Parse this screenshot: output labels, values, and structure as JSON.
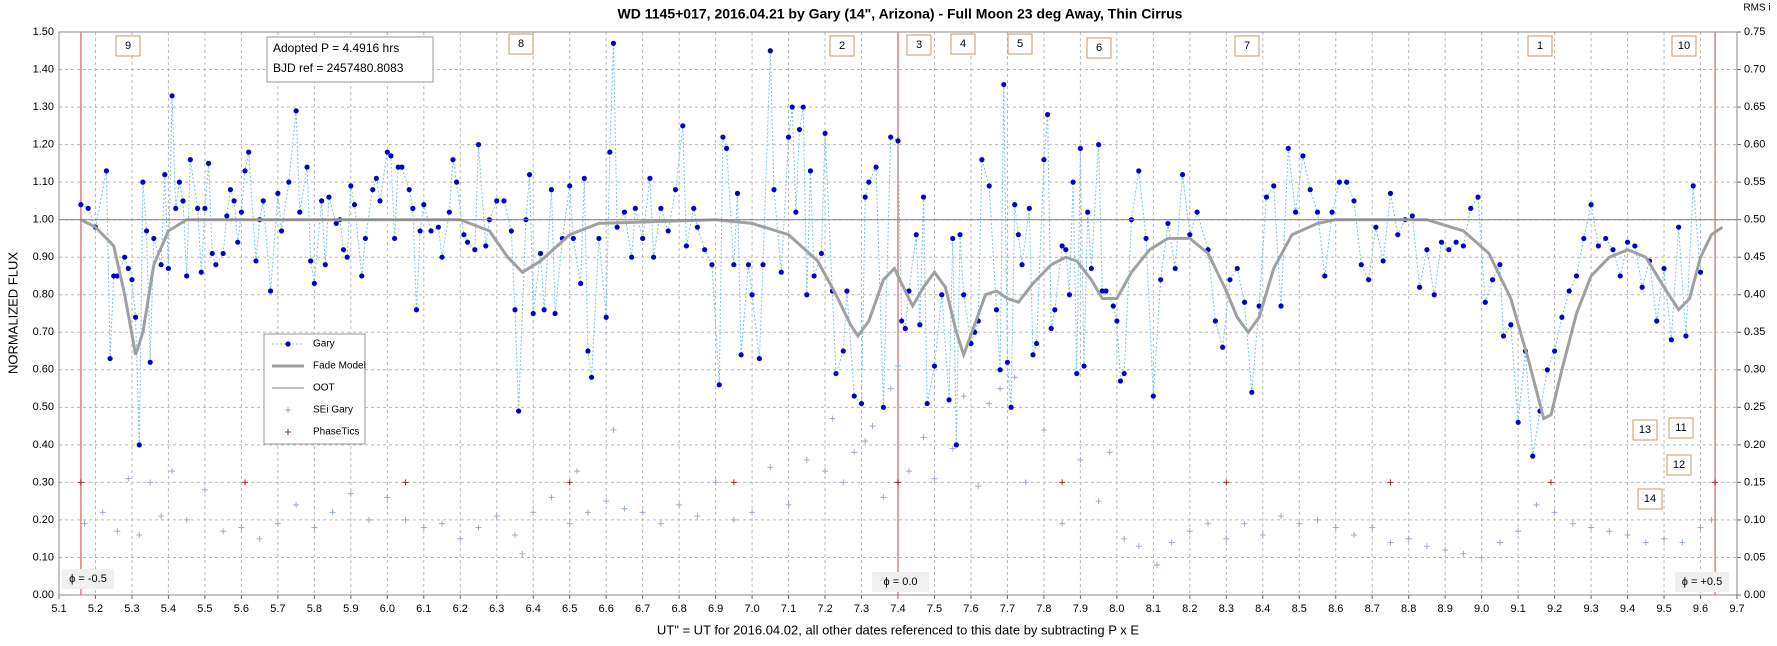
{
  "chart_data": {
    "type": "scatter",
    "title": "WD 1145+017, 2016.04.21 by Gary (14\", Arizona) - Full Moon 23 deg Away, Thin Cirrus",
    "xlabel": "UT\" = UT for 2016.04.02, all other dates referenced to this date by subtracting P x E",
    "ylabel": "NORMALIZED FLUX",
    "y2label": "RMS i",
    "xlim": [
      5.1,
      9.7
    ],
    "xticks": [
      5.1,
      5.2,
      5.3,
      5.4,
      5.5,
      5.6,
      5.7,
      5.8,
      5.9,
      {
        "value": 6,
        "label": "6.0"
      },
      6.1,
      6.2,
      6.3,
      6.4,
      6.5,
      6.6,
      6.7,
      6.8,
      6.9,
      {
        "value": 7,
        "label": "7.0"
      },
      7.1,
      7.2,
      7.3,
      7.4,
      7.5,
      7.6,
      7.7,
      7.8,
      7.9,
      {
        "value": 8,
        "label": "8.0"
      },
      8.1,
      8.2,
      8.3,
      8.4,
      8.5,
      8.6,
      8.7,
      8.8,
      8.9,
      {
        "value": 9,
        "label": "9.0"
      },
      9.1,
      9.2,
      9.3,
      9.4,
      9.5,
      9.6,
      9.7
    ],
    "ylim": [
      0,
      1.5
    ],
    "yticks": [
      {
        "value": 0,
        "label": "0.00"
      },
      {
        "value": 0.1,
        "label": "0.10"
      },
      {
        "value": 0.2,
        "label": "0.20"
      },
      {
        "value": 0.3,
        "label": "0.30"
      },
      {
        "value": 0.4,
        "label": "0.40"
      },
      {
        "value": 0.5,
        "label": "0.50"
      },
      {
        "value": 0.6,
        "label": "0.60"
      },
      {
        "value": 0.7,
        "label": "0.70"
      },
      {
        "value": 0.8,
        "label": "0.80"
      },
      {
        "value": 0.9,
        "label": "0.90"
      },
      {
        "value": 1,
        "label": "1.00"
      },
      {
        "value": 1.1,
        "label": "1.10"
      },
      {
        "value": 1.2,
        "label": "1.20"
      },
      {
        "value": 1.3,
        "label": "1.30"
      },
      {
        "value": 1.4,
        "label": "1.40"
      },
      {
        "value": 1.5,
        "label": "1.50"
      }
    ],
    "y2lim": [
      0,
      0.75
    ],
    "y2ticks": [
      {
        "value": 0,
        "label": "0.00"
      },
      {
        "value": 0.05,
        "label": "0.05"
      },
      {
        "value": 0.1,
        "label": "0.10"
      },
      {
        "value": 0.15,
        "label": "0.15"
      },
      {
        "value": 0.2,
        "label": "0.20"
      },
      {
        "value": 0.25,
        "label": "0.25"
      },
      {
        "value": 0.3,
        "label": "0.30"
      },
      {
        "value": 0.35,
        "label": "0.35"
      },
      {
        "value": 0.4,
        "label": "0.40"
      },
      {
        "value": 0.45,
        "label": "0.45"
      },
      {
        "value": 0.5,
        "label": "0.50"
      },
      {
        "value": 0.55,
        "label": "0.55"
      },
      {
        "value": 0.6,
        "label": "0.60"
      },
      {
        "value": 0.65,
        "label": "0.65"
      },
      {
        "value": 0.7,
        "label": "0.70"
      },
      {
        "value": 0.75,
        "label": "0.75"
      }
    ],
    "grid": true,
    "legend": "center-left",
    "series": [
      {
        "name": "Gary",
        "color": "#0000cc",
        "line_color": "#7cc4e0",
        "marker": "circle",
        "line": "dotted",
        "x": [
          5.16,
          5.18,
          5.2,
          5.23,
          5.24,
          5.25,
          5.26,
          5.28,
          5.29,
          5.3,
          5.31,
          5.32,
          5.33,
          5.34,
          5.35,
          5.36,
          5.38,
          5.39,
          5.4,
          5.41,
          5.42,
          5.43,
          5.44,
          5.45,
          5.46,
          5.48,
          5.49,
          5.5,
          5.51,
          5.52,
          5.53,
          5.55,
          5.56,
          5.57,
          5.58,
          5.59,
          5.6,
          5.61,
          5.62,
          5.64,
          5.65,
          5.66,
          5.68,
          5.7,
          5.71,
          5.73,
          5.75,
          5.76,
          5.78,
          5.79,
          5.8,
          5.82,
          5.83,
          5.84,
          5.86,
          5.87,
          5.88,
          5.89,
          5.9,
          5.91,
          5.93,
          5.94,
          5.96,
          5.97,
          5.98,
          6.0,
          6.01,
          6.02,
          6.03,
          6.04,
          6.06,
          6.07,
          6.08,
          6.09,
          6.1,
          6.12,
          6.14,
          6.15,
          6.17,
          6.18,
          6.19,
          6.21,
          6.22,
          6.24,
          6.25,
          6.27,
          6.28,
          6.3,
          6.32,
          6.34,
          6.35,
          6.36,
          6.38,
          6.39,
          6.4,
          6.42,
          6.43,
          6.45,
          6.46,
          6.48,
          6.5,
          6.51,
          6.53,
          6.54,
          6.55,
          6.56,
          6.58,
          6.6,
          6.61,
          6.62,
          6.63,
          6.65,
          6.67,
          6.68,
          6.7,
          6.72,
          6.73,
          6.75,
          6.77,
          6.79,
          6.81,
          6.82,
          6.84,
          6.85,
          6.87,
          6.89,
          6.91,
          6.92,
          6.93,
          6.95,
          6.96,
          6.97,
          6.99,
          7.0,
          7.02,
          7.03,
          7.05,
          7.06,
          7.08,
          7.1,
          7.11,
          7.12,
          7.13,
          7.14,
          7.15,
          7.16,
          7.17,
          7.19,
          7.2,
          7.22,
          7.23,
          7.25,
          7.26,
          7.28,
          7.3,
          7.31,
          7.32,
          7.34,
          7.36,
          7.38,
          7.4,
          7.41,
          7.42,
          7.43,
          7.45,
          7.46,
          7.47,
          7.48,
          7.5,
          7.52,
          7.54,
          7.55,
          7.56,
          7.57,
          7.58,
          7.6,
          7.61,
          7.62,
          7.63,
          7.65,
          7.67,
          7.68,
          7.69,
          7.7,
          7.71,
          7.72,
          7.73,
          7.74,
          7.76,
          7.77,
          7.78,
          7.8,
          7.81,
          7.82,
          7.83,
          7.85,
          7.86,
          7.87,
          7.88,
          7.89,
          7.9,
          7.91,
          7.92,
          7.93,
          7.95,
          7.96,
          7.97,
          7.99,
          8.0,
          8.01,
          8.02,
          8.04,
          8.06,
          8.08,
          8.1,
          8.12,
          8.14,
          8.16,
          8.18,
          8.2,
          8.22,
          8.25,
          8.27,
          8.29,
          8.31,
          8.33,
          8.35,
          8.37,
          8.39,
          8.41,
          8.43,
          8.45,
          8.47,
          8.49,
          8.51,
          8.53,
          8.55,
          8.57,
          8.59,
          8.61,
          8.63,
          8.65,
          8.67,
          8.69,
          8.71,
          8.73,
          8.75,
          8.77,
          8.79,
          8.81,
          8.83,
          8.85,
          8.87,
          8.89,
          8.91,
          8.93,
          8.95,
          8.97,
          8.99,
          9.01,
          9.03,
          9.05,
          9.06,
          9.08,
          9.1,
          9.12,
          9.14,
          9.16,
          9.18,
          9.2,
          9.22,
          9.24,
          9.26,
          9.28,
          9.3,
          9.32,
          9.34,
          9.36,
          9.38,
          9.4,
          9.42,
          9.44,
          9.46,
          9.48,
          9.5,
          9.52,
          9.54,
          9.56,
          9.58,
          9.6
        ],
        "values": [
          1.04,
          1.03,
          0.98,
          1.13,
          0.63,
          0.85,
          0.85,
          0.9,
          0.87,
          0.84,
          0.74,
          0.4,
          1.1,
          0.97,
          0.62,
          0.95,
          0.88,
          1.12,
          0.87,
          1.33,
          1.03,
          1.1,
          1.05,
          0.85,
          1.16,
          1.03,
          0.86,
          1.03,
          1.15,
          0.91,
          0.88,
          0.91,
          1.01,
          1.08,
          1.05,
          0.94,
          1.02,
          1.13,
          1.18,
          0.89,
          1.0,
          1.05,
          0.81,
          1.07,
          0.97,
          1.1,
          1.29,
          1.02,
          1.14,
          0.89,
          0.83,
          1.05,
          0.88,
          1.06,
          0.99,
          1.0,
          0.92,
          0.9,
          1.09,
          1.04,
          0.85,
          0.95,
          1.08,
          1.11,
          1.05,
          1.18,
          1.17,
          0.95,
          1.14,
          1.14,
          1.08,
          1.03,
          0.76,
          0.97,
          1.04,
          0.97,
          0.98,
          0.9,
          1.02,
          1.16,
          1.1,
          0.96,
          0.94,
          0.92,
          1.2,
          0.93,
          1.0,
          1.05,
          1.05,
          0.97,
          0.76,
          0.49,
          1.0,
          1.12,
          0.75,
          0.91,
          0.76,
          1.08,
          0.75,
          0.95,
          1.09,
          0.95,
          0.83,
          1.11,
          0.65,
          0.58,
          0.95,
          0.74,
          1.18,
          1.47,
          0.98,
          1.02,
          0.9,
          1.03,
          0.95,
          1.11,
          0.9,
          1.03,
          0.97,
          1.08,
          1.25,
          0.93,
          1.03,
          0.98,
          0.92,
          0.88,
          0.56,
          1.22,
          1.19,
          0.88,
          1.07,
          0.64,
          0.88,
          0.8,
          0.63,
          0.88,
          1.45,
          1.08,
          0.86,
          1.22,
          1.3,
          1.02,
          1.24,
          1.3,
          0.8,
          1.13,
          0.85,
          0.91,
          1.23,
          0.81,
          0.59,
          0.65,
          0.81,
          0.53,
          0.51,
          1.06,
          1.1,
          1.14,
          0.5,
          1.22,
          1.21,
          0.73,
          0.71,
          0.81,
          0.96,
          0.72,
          1.06,
          0.51,
          0.61,
          0.8,
          0.52,
          0.95,
          0.4,
          0.96,
          0.8,
          0.67,
          0.7,
          0.73,
          1.16,
          1.09,
          0.76,
          0.6,
          1.36,
          0.62,
          0.5,
          1.04,
          0.96,
          0.88,
          1.03,
          0.64,
          0.67,
          1.16,
          1.28,
          0.71,
          0.76,
          0.93,
          0.92,
          0.8,
          1.1,
          0.59,
          1.19,
          0.61,
          1.02,
          0.87,
          1.2,
          0.81,
          0.81,
          0.77,
          0.73,
          0.57,
          0.59,
          1.0,
          1.13,
          0.95,
          0.53,
          0.84,
          0.99,
          0.87,
          1.12,
          0.96,
          1.02,
          0.92,
          0.73,
          0.66,
          0.84,
          0.87,
          0.78,
          0.54,
          0.77,
          1.06,
          1.09,
          0.77,
          1.19,
          1.02,
          1.17,
          1.08,
          1.02,
          0.85,
          1.02,
          1.1,
          1.1,
          1.05,
          0.88,
          0.84,
          0.98,
          0.89,
          1.07,
          0.96,
          1.0,
          1.01,
          0.82,
          0.92,
          0.8,
          0.94,
          0.92,
          0.94,
          0.93,
          1.03,
          1.06,
          0.78,
          0.84,
          0.88,
          0.69,
          0.72,
          0.46,
          0.65,
          0.37,
          0.49,
          0.6,
          0.65,
          0.74,
          0.81,
          0.85,
          0.95,
          1.04,
          0.93,
          0.95,
          0.92,
          0.85,
          0.94,
          0.93,
          0.82,
          0.89,
          0.73,
          0.87,
          0.68,
          0.98,
          0.69,
          1.09,
          0.86
        ]
      },
      {
        "name": "Fade Model",
        "color": "#a0a0a0",
        "marker": "none",
        "line": "solid",
        "line_width": 3,
        "x": [
          5.16,
          5.2,
          5.25,
          5.28,
          5.31,
          5.33,
          5.36,
          5.4,
          5.45,
          6.2,
          6.28,
          6.33,
          6.37,
          6.42,
          6.5,
          6.58,
          6.9,
          7.0,
          7.1,
          7.18,
          7.23,
          7.27,
          7.29,
          7.32,
          7.36,
          7.39,
          7.41,
          7.44,
          7.47,
          7.5,
          7.53,
          7.56,
          7.58,
          7.61,
          7.64,
          7.67,
          7.7,
          7.73,
          7.77,
          7.82,
          7.86,
          7.89,
          7.93,
          7.96,
          8.0,
          8.04,
          8.09,
          8.14,
          8.2,
          8.25,
          8.3,
          8.33,
          8.36,
          8.39,
          8.43,
          8.48,
          8.55,
          8.6,
          8.85,
          8.95,
          9.02,
          9.08,
          9.13,
          9.17,
          9.19,
          9.22,
          9.26,
          9.3,
          9.35,
          9.4,
          9.45,
          9.5,
          9.54,
          9.57,
          9.6,
          9.63,
          9.66
        ],
        "values": [
          1.0,
          0.98,
          0.93,
          0.8,
          0.64,
          0.7,
          0.88,
          0.97,
          1.0,
          1.0,
          0.97,
          0.9,
          0.86,
          0.89,
          0.96,
          0.99,
          1.0,
          0.99,
          0.96,
          0.89,
          0.8,
          0.72,
          0.69,
          0.73,
          0.84,
          0.87,
          0.83,
          0.77,
          0.82,
          0.86,
          0.82,
          0.7,
          0.64,
          0.72,
          0.8,
          0.81,
          0.79,
          0.78,
          0.83,
          0.88,
          0.9,
          0.89,
          0.84,
          0.79,
          0.79,
          0.86,
          0.92,
          0.95,
          0.95,
          0.91,
          0.81,
          0.74,
          0.7,
          0.74,
          0.87,
          0.96,
          0.99,
          1.0,
          1.0,
          0.97,
          0.91,
          0.79,
          0.62,
          0.47,
          0.48,
          0.6,
          0.75,
          0.85,
          0.9,
          0.92,
          0.9,
          0.82,
          0.76,
          0.79,
          0.9,
          0.96,
          0.98
        ]
      },
      {
        "name": "OOT",
        "color": "#808080",
        "marker": "none",
        "line": "solid",
        "line_width": 1,
        "x": [
          5.1,
          9.7
        ],
        "values": [
          1,
          1
        ]
      },
      {
        "name": "SEi  Gary",
        "color": "#9aaccc",
        "marker": "plus",
        "line": "none",
        "x": [
          5.17,
          5.22,
          5.26,
          5.29,
          5.32,
          5.35,
          5.38,
          5.41,
          5.45,
          5.5,
          5.55,
          5.6,
          5.65,
          5.7,
          5.75,
          5.8,
          5.85,
          5.9,
          5.95,
          6.0,
          6.05,
          6.1,
          6.15,
          6.2,
          6.25,
          6.3,
          6.35,
          6.37,
          6.4,
          6.45,
          6.5,
          6.52,
          6.55,
          6.6,
          6.62,
          6.65,
          6.7,
          6.75,
          6.8,
          6.85,
          6.9,
          6.95,
          7.0,
          7.05,
          7.1,
          7.15,
          7.2,
          7.22,
          7.25,
          7.28,
          7.31,
          7.33,
          7.36,
          7.38,
          7.4,
          7.43,
          7.47,
          7.5,
          7.55,
          7.58,
          7.62,
          7.65,
          7.68,
          7.72,
          7.75,
          7.8,
          7.85,
          7.9,
          7.95,
          7.98,
          8.02,
          8.06,
          8.11,
          8.15,
          8.2,
          8.25,
          8.3,
          8.35,
          8.4,
          8.45,
          8.5,
          8.55,
          8.6,
          8.65,
          8.7,
          8.75,
          8.8,
          8.85,
          8.9,
          8.95,
          9.0,
          9.05,
          9.1,
          9.15,
          9.2,
          9.25,
          9.3,
          9.35,
          9.4,
          9.45,
          9.5,
          9.55,
          9.6,
          9.63
        ],
        "values": [
          0.19,
          0.22,
          0.17,
          0.31,
          0.16,
          0.3,
          0.21,
          0.33,
          0.2,
          0.28,
          0.17,
          0.18,
          0.15,
          0.19,
          0.24,
          0.18,
          0.22,
          0.27,
          0.2,
          0.26,
          0.2,
          0.18,
          0.19,
          0.15,
          0.18,
          0.21,
          0.16,
          0.11,
          0.22,
          0.26,
          0.19,
          0.33,
          0.22,
          0.25,
          0.44,
          0.23,
          0.22,
          0.19,
          0.24,
          0.21,
          0.3,
          0.2,
          0.22,
          0.34,
          0.24,
          0.36,
          0.33,
          0.47,
          0.3,
          0.38,
          0.41,
          0.45,
          0.26,
          0.55,
          0.61,
          0.33,
          0.42,
          0.31,
          0.39,
          0.53,
          0.29,
          0.51,
          0.55,
          0.58,
          0.3,
          0.44,
          0.19,
          0.36,
          0.25,
          0.38,
          0.15,
          0.13,
          0.08,
          0.14,
          0.17,
          0.19,
          0.15,
          0.19,
          0.16,
          0.21,
          0.19,
          0.2,
          0.18,
          0.16,
          0.18,
          0.14,
          0.15,
          0.13,
          0.12,
          0.11,
          0.1,
          0.14,
          0.17,
          0.24,
          0.22,
          0.19,
          0.18,
          0.17,
          0.16,
          0.14,
          0.15,
          0.14,
          0.18,
          0.2
        ]
      },
      {
        "name": "PhaseTics",
        "color": "#a03030",
        "marker": "plus",
        "line": "none",
        "x": [
          5.16,
          5.61,
          6.05,
          6.5,
          6.95,
          7.4,
          7.85,
          8.3,
          8.75,
          9.19,
          9.64
        ],
        "values": [
          0.3,
          0.3,
          0.3,
          0.3,
          0.3,
          0.3,
          0.3,
          0.3,
          0.3,
          0.3,
          0.3
        ]
      }
    ],
    "info_box": [
      "Adopted P = 4.4916 hrs",
      "BJD ref = 2457480.8083"
    ],
    "annotations": [
      "9",
      "8",
      "2",
      "3",
      "4",
      "5",
      "6",
      "7",
      "1",
      "10",
      "13",
      "11",
      "12",
      "14"
    ],
    "phase_labels": [
      "ϕ = -0.5",
      "ϕ = 0.0",
      "ϕ = +0.5"
    ]
  }
}
